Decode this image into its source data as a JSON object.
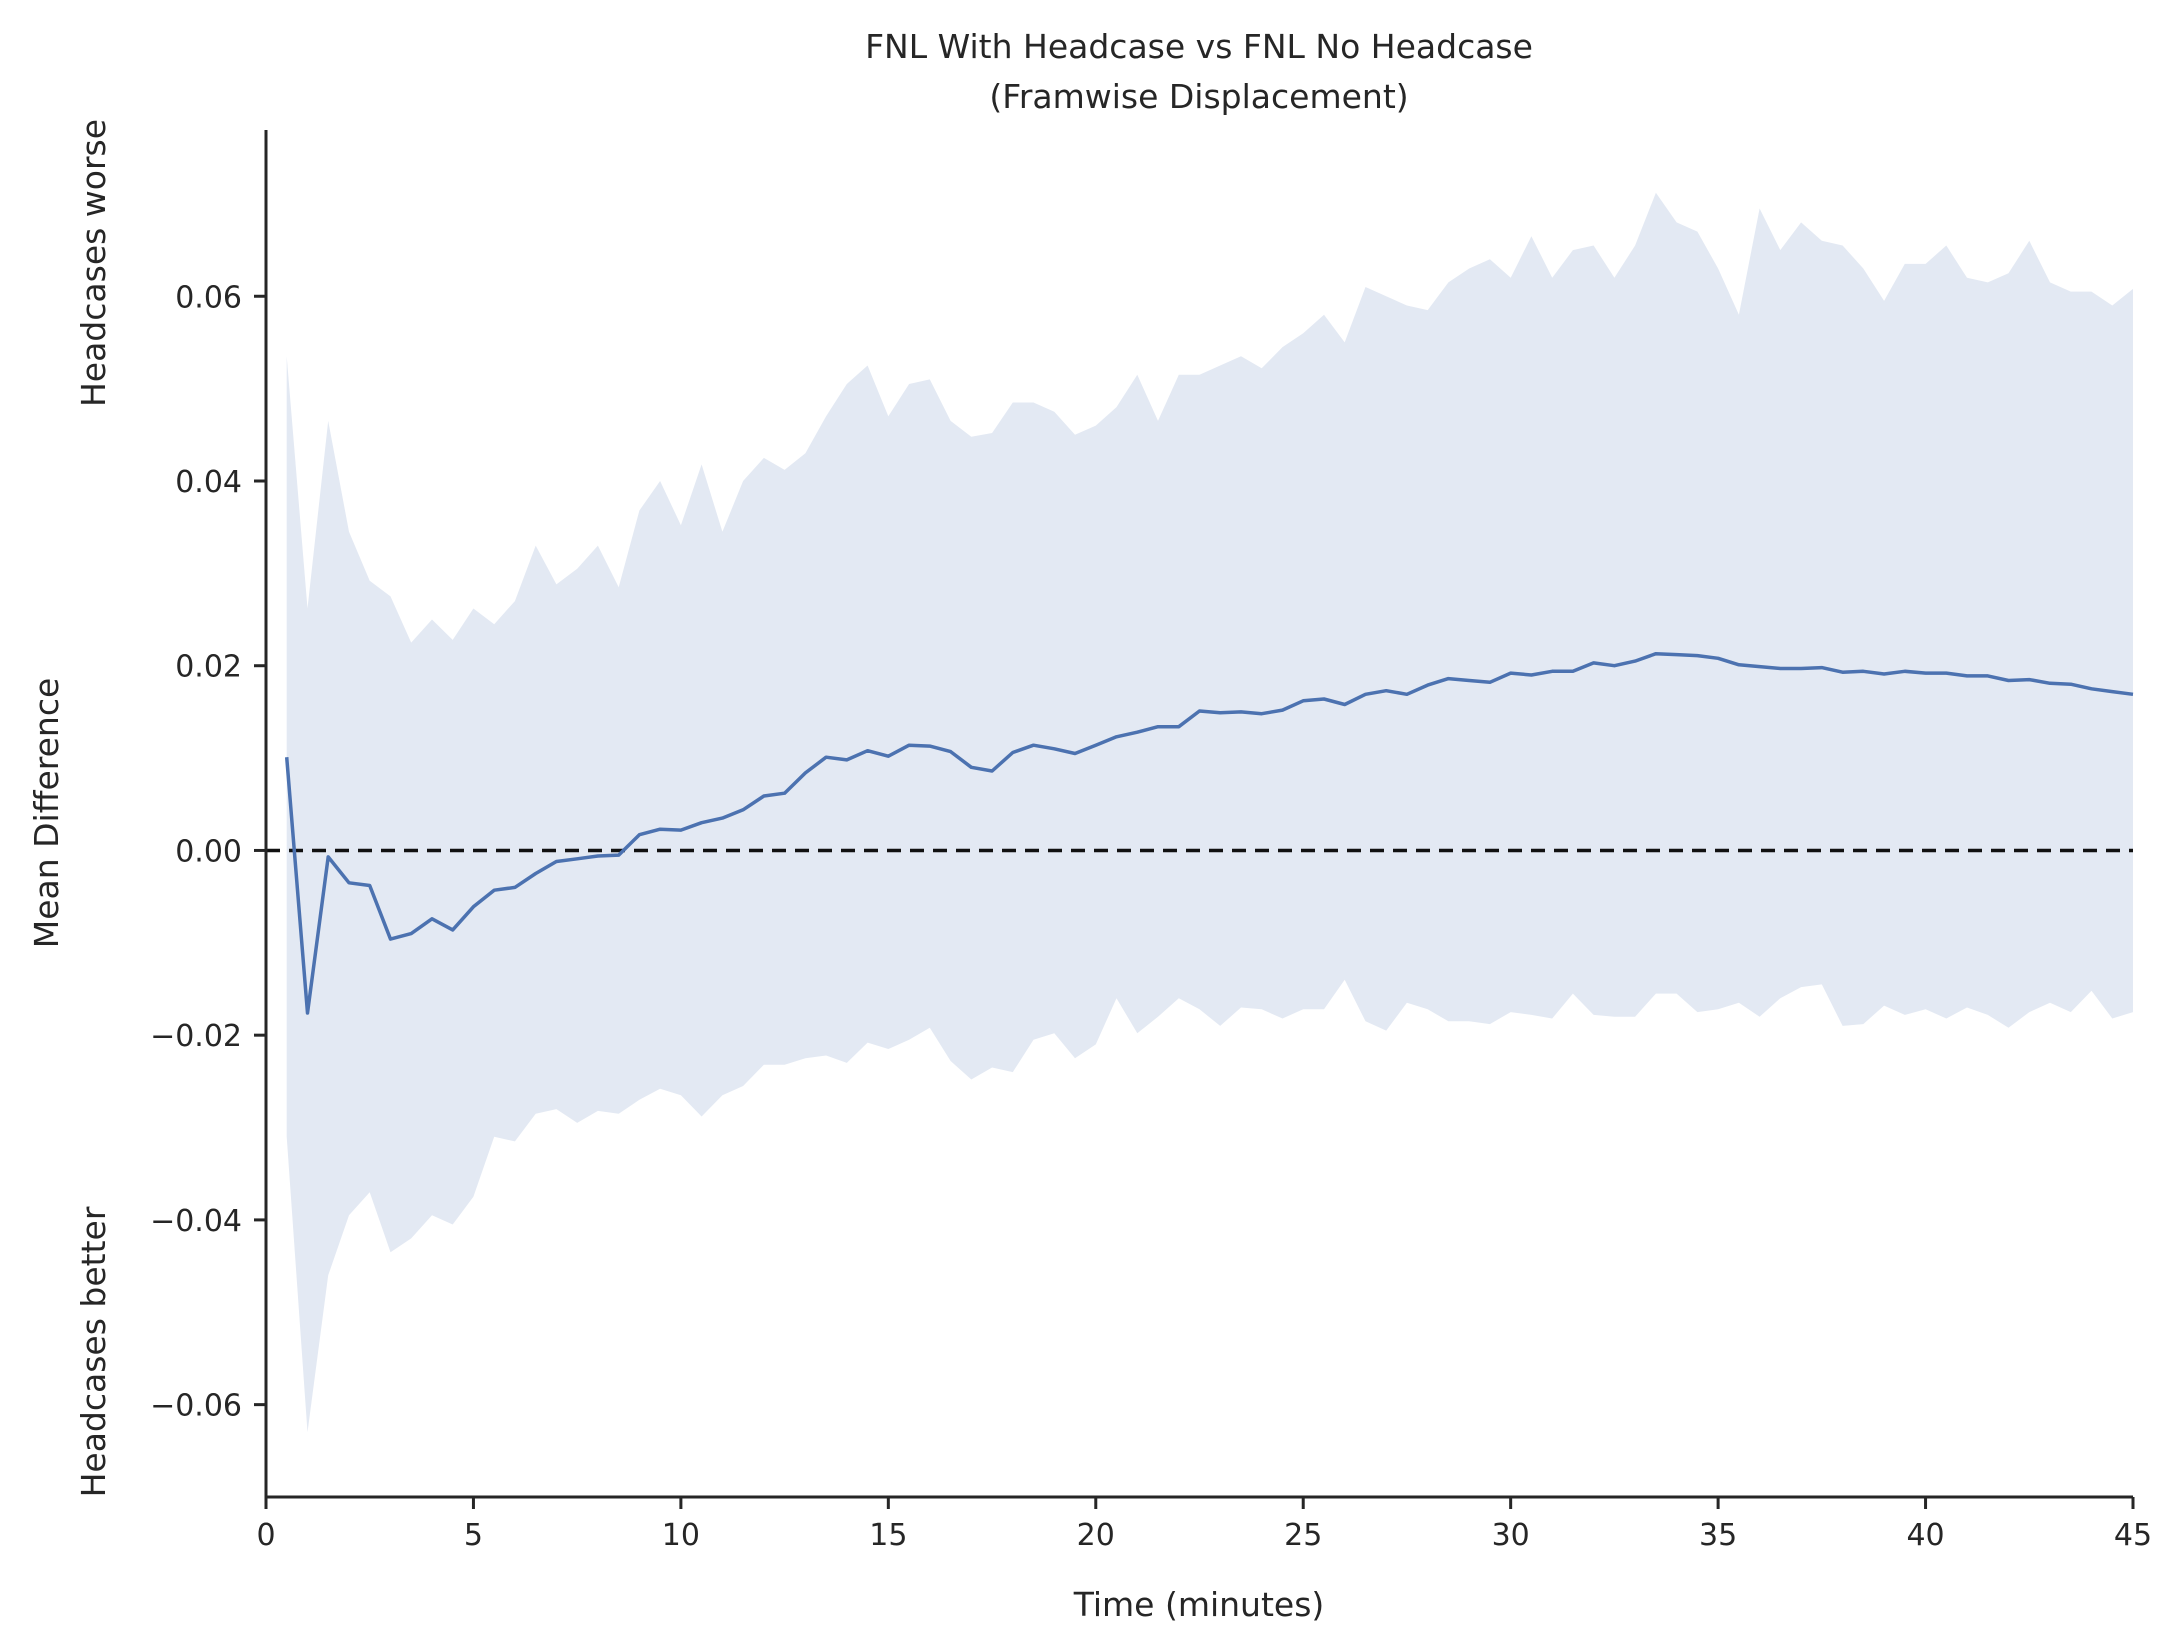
{
  "chart_data": {
    "type": "line",
    "title": "FNL With Headcase vs FNL No Headcase",
    "subtitle": "(Framwise Displacement)",
    "xlabel": "Time (minutes)",
    "ylabel": "Mean Difference",
    "annotations": {
      "y_top": "Headcases worse",
      "y_bottom": "Headcases better"
    },
    "xlim": [
      0,
      45
    ],
    "ylim": [
      -0.07,
      0.078
    ],
    "xticks": [
      0,
      5,
      10,
      15,
      20,
      25,
      30,
      35,
      40,
      45
    ],
    "xtick_labels": [
      "0",
      "5",
      "10",
      "15",
      "20",
      "25",
      "30",
      "35",
      "40",
      "45"
    ],
    "yticks": [
      -0.06,
      -0.04,
      -0.02,
      0.0,
      0.02,
      0.04,
      0.06
    ],
    "ytick_labels": [
      "−0.06",
      "−0.04",
      "−0.02",
      "0.00",
      "0.02",
      "0.04",
      "0.06"
    ],
    "reference_line": {
      "y": 0.0,
      "style": "dashed",
      "color": "#111111"
    },
    "grid": false,
    "colors": {
      "line": "#4c72b0",
      "band": "#e3e9f3",
      "axis": "#262626"
    },
    "x": [
      0.5,
      1.0,
      1.5,
      2.0,
      2.5,
      3.0,
      3.5,
      4.0,
      4.5,
      5.0,
      5.5,
      6.0,
      6.5,
      7.0,
      7.5,
      8.0,
      8.5,
      9.0,
      9.5,
      10.0,
      10.5,
      11.0,
      11.5,
      12.0,
      12.5,
      13.0,
      13.5,
      14.0,
      14.5,
      15.0,
      15.5,
      16.0,
      16.5,
      17.0,
      17.5,
      18.0,
      18.5,
      19.0,
      19.5,
      20.0,
      20.5,
      21.0,
      21.5,
      22.0,
      22.5,
      23.0,
      23.5,
      24.0,
      24.5,
      25.0,
      25.5,
      26.0,
      26.5,
      27.0,
      27.5,
      28.0,
      28.5,
      29.0,
      29.5,
      30.0,
      30.5,
      31.0,
      31.5,
      32.0,
      32.5,
      33.0,
      33.5,
      34.0,
      34.5,
      35.0,
      35.5,
      36.0,
      36.5,
      37.0,
      37.5,
      38.0,
      38.5,
      39.0,
      39.5,
      40.0,
      40.5,
      41.0,
      41.5,
      42.0,
      42.5,
      43.0,
      43.5,
      44.0,
      44.5,
      45.0
    ],
    "series": [
      {
        "values": [
          0.0101,
          -0.0176,
          -0.0007,
          -0.0035,
          -0.0038,
          -0.0096,
          -0.009,
          -0.0074,
          -0.0086,
          -0.0061,
          -0.0043,
          -0.004,
          -0.0025,
          -0.0012,
          -0.0009,
          -0.0006,
          -0.0005,
          0.0017,
          0.0023,
          0.0022,
          0.003,
          0.0035,
          0.0044,
          0.0059,
          0.0062,
          0.0084,
          0.0101,
          0.0098,
          0.0108,
          0.0102,
          0.0114,
          0.0113,
          0.0107,
          0.009,
          0.0086,
          0.0106,
          0.0114,
          0.011,
          0.0105,
          0.0114,
          0.0123,
          0.0128,
          0.0134,
          0.0134,
          0.0151,
          0.0149,
          0.015,
          0.0148,
          0.0152,
          0.0162,
          0.0164,
          0.0158,
          0.0169,
          0.0173,
          0.0169,
          0.0179,
          0.0186,
          0.0184,
          0.0182,
          0.0192,
          0.019,
          0.0194,
          0.0194,
          0.0203,
          0.02,
          0.0205,
          0.0213,
          0.0212,
          0.0211,
          0.0208,
          0.0201,
          0.0199,
          0.0197,
          0.0197,
          0.0198,
          0.0193,
          0.0194,
          0.0191,
          0.0194,
          0.0192,
          0.0192,
          0.0189,
          0.0189,
          0.0184,
          0.0185,
          0.0181,
          0.018,
          0.0175,
          0.0172,
          0.0169
        ],
        "ci_upper": [
          0.0535,
          0.0262,
          0.0465,
          0.0345,
          0.0292,
          0.0275,
          0.0225,
          0.025,
          0.0228,
          0.0262,
          0.0245,
          0.027,
          0.033,
          0.0288,
          0.0305,
          0.033,
          0.0285,
          0.0368,
          0.04,
          0.0352,
          0.0418,
          0.0345,
          0.04,
          0.0425,
          0.0412,
          0.043,
          0.047,
          0.0505,
          0.0525,
          0.047,
          0.0505,
          0.051,
          0.0465,
          0.0448,
          0.0452,
          0.0485,
          0.0485,
          0.0475,
          0.045,
          0.046,
          0.048,
          0.0515,
          0.0465,
          0.0515,
          0.0515,
          0.0525,
          0.0535,
          0.0522,
          0.0545,
          0.056,
          0.058,
          0.055,
          0.061,
          0.06,
          0.059,
          0.0585,
          0.0615,
          0.063,
          0.064,
          0.062,
          0.0665,
          0.062,
          0.065,
          0.0655,
          0.062,
          0.0655,
          0.0712,
          0.068,
          0.067,
          0.063,
          0.058,
          0.0695,
          0.065,
          0.068,
          0.066,
          0.0655,
          0.063,
          0.0595,
          0.0635,
          0.0635,
          0.0655,
          0.062,
          0.0615,
          0.0625,
          0.066,
          0.0615,
          0.0605,
          0.0605,
          0.059,
          0.0608
        ],
        "ci_lower": [
          -0.031,
          -0.063,
          -0.046,
          -0.0395,
          -0.037,
          -0.0435,
          -0.042,
          -0.0395,
          -0.0405,
          -0.0375,
          -0.031,
          -0.0315,
          -0.0285,
          -0.028,
          -0.0295,
          -0.0282,
          -0.0285,
          -0.027,
          -0.0258,
          -0.0265,
          -0.0288,
          -0.0265,
          -0.0255,
          -0.0232,
          -0.0232,
          -0.0225,
          -0.0222,
          -0.023,
          -0.0208,
          -0.0215,
          -0.0205,
          -0.0192,
          -0.0228,
          -0.0248,
          -0.0235,
          -0.024,
          -0.0205,
          -0.0198,
          -0.0225,
          -0.021,
          -0.016,
          -0.0198,
          -0.018,
          -0.016,
          -0.0172,
          -0.019,
          -0.017,
          -0.0172,
          -0.0182,
          -0.0172,
          -0.0172,
          -0.014,
          -0.0185,
          -0.0195,
          -0.0165,
          -0.0172,
          -0.0185,
          -0.0185,
          -0.0188,
          -0.0175,
          -0.0178,
          -0.0182,
          -0.0155,
          -0.0178,
          -0.018,
          -0.018,
          -0.0155,
          -0.0155,
          -0.0175,
          -0.0172,
          -0.0165,
          -0.018,
          -0.016,
          -0.0148,
          -0.0145,
          -0.019,
          -0.0188,
          -0.0168,
          -0.0178,
          -0.0172,
          -0.0182,
          -0.017,
          -0.0178,
          -0.0192,
          -0.0175,
          -0.0165,
          -0.0175,
          -0.0152,
          -0.0182,
          -0.0175
        ]
      }
    ]
  }
}
